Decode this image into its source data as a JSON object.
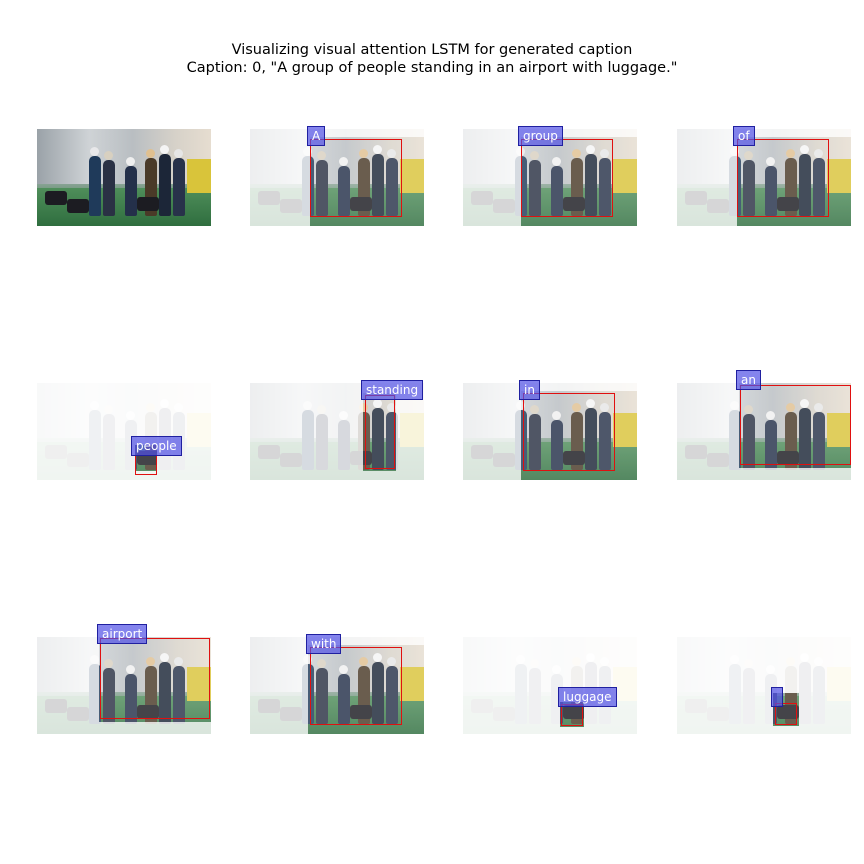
{
  "figure": {
    "title_line1": "Visualizing visual attention LSTM for generated caption",
    "title_line2": "Caption: 0, \"A group of people standing in an airport with luggage.\""
  },
  "panels": [
    {
      "label": "",
      "role": "original"
    },
    {
      "label": "A"
    },
    {
      "label": "group"
    },
    {
      "label": "of"
    },
    {
      "label": "people"
    },
    {
      "label": "standing"
    },
    {
      "label": "in"
    },
    {
      "label": "an"
    },
    {
      "label": "airport"
    },
    {
      "label": "with"
    },
    {
      "label": "luggage"
    },
    {
      "label": ""
    }
  ],
  "colors": {
    "box": "#e01010",
    "tag_fill": "#5050e6",
    "floor": "#3f7a4f"
  }
}
